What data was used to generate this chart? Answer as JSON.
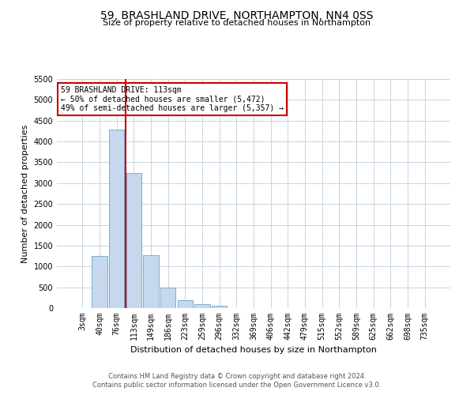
{
  "title": "59, BRASHLAND DRIVE, NORTHAMPTON, NN4 0SS",
  "subtitle": "Size of property relative to detached houses in Northampton",
  "xlabel": "Distribution of detached houses by size in Northampton",
  "ylabel": "Number of detached properties",
  "categories": [
    "3sqm",
    "40sqm",
    "76sqm",
    "113sqm",
    "149sqm",
    "186sqm",
    "223sqm",
    "259sqm",
    "296sqm",
    "332sqm",
    "369sqm",
    "406sqm",
    "442sqm",
    "479sqm",
    "515sqm",
    "552sqm",
    "589sqm",
    "625sqm",
    "662sqm",
    "698sqm",
    "735sqm"
  ],
  "bar_values": [
    0,
    1250,
    4280,
    3250,
    1280,
    490,
    185,
    90,
    55,
    0,
    0,
    0,
    0,
    0,
    0,
    0,
    0,
    0,
    0,
    0,
    0
  ],
  "bar_color": "#c5d8ed",
  "bar_edge_color": "#7aafd4",
  "vline_x": 2.5,
  "vline_color": "#cc0000",
  "annotation_text": "59 BRASHLAND DRIVE: 113sqm\n← 50% of detached houses are smaller (5,472)\n49% of semi-detached houses are larger (5,357) →",
  "annotation_box_color": "#ffffff",
  "annotation_box_edge_color": "#cc0000",
  "ylim": [
    0,
    5500
  ],
  "yticks": [
    0,
    500,
    1000,
    1500,
    2000,
    2500,
    3000,
    3500,
    4000,
    4500,
    5000,
    5500
  ],
  "footnote": "Contains HM Land Registry data © Crown copyright and database right 2024.\nContains public sector information licensed under the Open Government Licence v3.0.",
  "bg_color": "#ffffff",
  "grid_color": "#c8d4e0",
  "title_fontsize": 10,
  "subtitle_fontsize": 8,
  "ylabel_fontsize": 8,
  "xlabel_fontsize": 8,
  "annotation_fontsize": 7,
  "tick_fontsize": 7,
  "footnote_fontsize": 6
}
